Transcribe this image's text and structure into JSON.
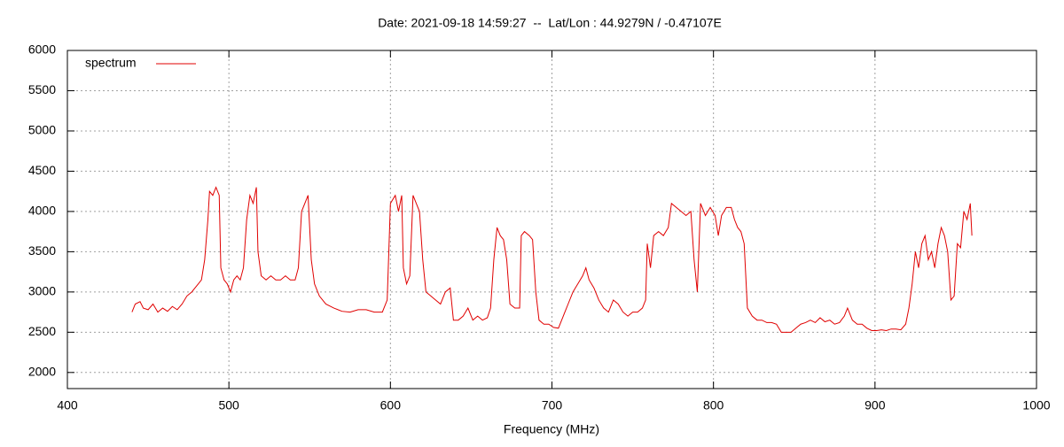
{
  "chart_data": {
    "type": "line",
    "title": "Date: 2021-09-18 14:59:27  --  Lat/Lon : 44.9279N / -0.47107E",
    "x_label": "Frequency (MHz)",
    "xlim": [
      400,
      1000
    ],
    "xticks": [
      400,
      500,
      600,
      700,
      800,
      900,
      1000
    ],
    "ylim": [
      1800,
      6000
    ],
    "yticks": [
      2000,
      2500,
      3000,
      3500,
      4000,
      4500,
      5000,
      5500,
      6000
    ],
    "grid": true,
    "legend": "top-left",
    "series": [
      {
        "name": "spectrum",
        "color": "#e00000",
        "x": [
          440,
          442,
          445,
          447,
          450,
          453,
          456,
          459,
          462,
          465,
          468,
          471,
          474,
          477,
          479,
          481,
          483,
          485,
          487,
          488,
          490,
          492,
          494,
          495,
          497,
          499,
          501,
          503,
          505,
          507,
          509,
          511,
          513,
          515,
          517,
          518,
          520,
          523,
          526,
          529,
          532,
          535,
          538,
          541,
          543,
          545,
          547,
          549,
          551,
          553,
          556,
          560,
          565,
          570,
          575,
          580,
          585,
          590,
          595,
          598,
          600,
          603,
          605,
          607,
          608,
          610,
          612,
          614,
          616,
          618,
          620,
          622,
          625,
          628,
          631,
          634,
          637,
          639,
          642,
          645,
          648,
          651,
          654,
          657,
          660,
          662,
          664,
          666,
          668,
          670,
          672,
          674,
          677,
          680,
          681,
          683,
          686,
          688,
          690,
          692,
          695,
          698,
          701,
          704,
          707,
          710,
          713,
          716,
          719,
          721,
          723,
          726,
          729,
          732,
          735,
          738,
          741,
          744,
          747,
          750,
          753,
          756,
          758,
          759,
          761,
          763,
          766,
          769,
          772,
          774,
          777,
          780,
          783,
          786,
          788,
          790,
          792,
          795,
          798,
          801,
          803,
          805,
          808,
          811,
          813,
          815,
          817,
          819,
          821,
          824,
          827,
          830,
          833,
          836,
          839,
          842,
          845,
          848,
          851,
          854,
          857,
          860,
          863,
          866,
          869,
          872,
          875,
          878,
          881,
          883,
          886,
          889,
          892,
          895,
          898,
          901,
          904,
          907,
          910,
          913,
          916,
          919,
          921,
          923,
          925,
          927,
          929,
          931,
          933,
          935,
          937,
          939,
          941,
          943,
          945,
          947,
          949,
          951,
          953,
          955,
          957,
          959,
          960
        ],
        "values": [
          2750,
          2850,
          2880,
          2800,
          2780,
          2850,
          2750,
          2800,
          2760,
          2820,
          2780,
          2850,
          2950,
          3000,
          3050,
          3100,
          3150,
          3400,
          3900,
          4250,
          4200,
          4300,
          4200,
          3300,
          3150,
          3100,
          3000,
          3150,
          3200,
          3150,
          3300,
          3900,
          4200,
          4100,
          4300,
          3500,
          3200,
          3150,
          3200,
          3150,
          3150,
          3200,
          3150,
          3150,
          3300,
          4000,
          4100,
          4200,
          3400,
          3100,
          2950,
          2850,
          2800,
          2760,
          2750,
          2780,
          2780,
          2750,
          2750,
          2900,
          4100,
          4200,
          4000,
          4200,
          3300,
          3100,
          3200,
          4200,
          4100,
          4000,
          3400,
          3000,
          2950,
          2900,
          2850,
          3000,
          3050,
          2650,
          2650,
          2700,
          2800,
          2650,
          2700,
          2650,
          2680,
          2800,
          3400,
          3800,
          3700,
          3650,
          3400,
          2850,
          2800,
          2800,
          3700,
          3750,
          3700,
          3650,
          3000,
          2650,
          2600,
          2600,
          2560,
          2550,
          2700,
          2850,
          3000,
          3100,
          3200,
          3300,
          3150,
          3050,
          2900,
          2800,
          2750,
          2900,
          2850,
          2750,
          2700,
          2750,
          2750,
          2800,
          2900,
          3600,
          3300,
          3700,
          3750,
          3700,
          3800,
          4100,
          4050,
          4000,
          3950,
          4000,
          3400,
          3000,
          4100,
          3950,
          4050,
          3950,
          3700,
          3950,
          4050,
          4050,
          3900,
          3800,
          3750,
          3600,
          2800,
          2700,
          2650,
          2650,
          2620,
          2620,
          2600,
          2500,
          2500,
          2500,
          2550,
          2600,
          2620,
          2650,
          2620,
          2680,
          2630,
          2650,
          2600,
          2620,
          2700,
          2800,
          2650,
          2600,
          2600,
          2550,
          2520,
          2520,
          2530,
          2520,
          2540,
          2540,
          2530,
          2600,
          2800,
          3100,
          3500,
          3300,
          3600,
          3700,
          3400,
          3500,
          3300,
          3600,
          3800,
          3700,
          3500,
          2900,
          2950,
          3600,
          3550,
          4000,
          3900,
          4100,
          3700
        ]
      }
    ]
  }
}
